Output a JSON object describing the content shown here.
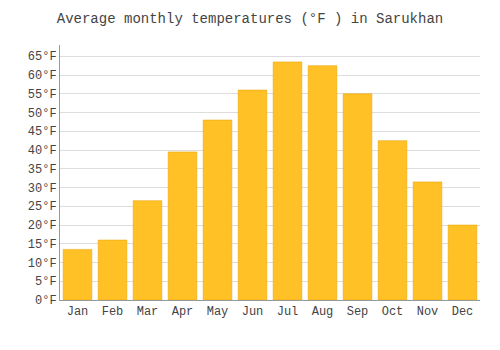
{
  "chart_data": {
    "type": "bar",
    "title": "Average monthly temperatures (°F ) in Sarukhan",
    "categories": [
      "Jan",
      "Feb",
      "Mar",
      "Apr",
      "May",
      "Jun",
      "Jul",
      "Aug",
      "Sep",
      "Oct",
      "Nov",
      "Dec"
    ],
    "values": [
      13.5,
      16.0,
      26.5,
      39.5,
      48.0,
      56.0,
      63.5,
      62.5,
      55.0,
      42.5,
      31.5,
      20.0
    ],
    "color": "#FFC125",
    "ylim": [
      0,
      68
    ],
    "yticks": [
      {
        "value": 0,
        "label": "0°F"
      },
      {
        "value": 5,
        "label": "5°F"
      },
      {
        "value": 10,
        "label": "10°F"
      },
      {
        "value": 15,
        "label": "15°F"
      },
      {
        "value": 20,
        "label": "20°F"
      },
      {
        "value": 25,
        "label": "25°F"
      },
      {
        "value": 30,
        "label": "30°F"
      },
      {
        "value": 35,
        "label": "35°F"
      },
      {
        "value": 40,
        "label": "40°F"
      },
      {
        "value": 45,
        "label": "45°F"
      },
      {
        "value": 50,
        "label": "50°F"
      },
      {
        "value": 55,
        "label": "55°F"
      },
      {
        "value": 60,
        "label": "60°F"
      },
      {
        "value": 65,
        "label": "65°F"
      }
    ],
    "grid": true
  }
}
